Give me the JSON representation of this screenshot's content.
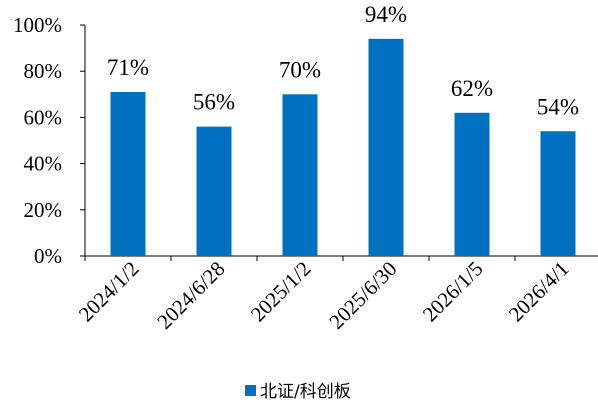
{
  "chart_data": {
    "type": "bar",
    "categories": [
      "2024/1/2",
      "2024/6/28",
      "2025/1/2",
      "2025/6/30",
      "2026/1/5",
      "2026/4/1"
    ],
    "series": [
      {
        "name": "北证/科创板",
        "values": [
          71,
          56,
          70,
          94,
          62,
          54
        ]
      }
    ],
    "data_labels": [
      "71%",
      "56%",
      "70%",
      "94%",
      "62%",
      "54%"
    ],
    "y_ticks": [
      "0%",
      "20%",
      "40%",
      "60%",
      "80%",
      "100%"
    ],
    "ylim": [
      0,
      100
    ],
    "grid": false,
    "legend_position": "bottom-center",
    "bar_color": "#0070C0"
  }
}
